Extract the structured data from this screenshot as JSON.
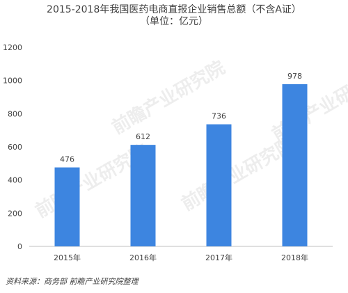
{
  "chart_data": {
    "type": "bar",
    "title": "2015-2018年我国医药电商直报企业销售总额（不含A证）",
    "subtitle": "（单位：亿元）",
    "categories": [
      "2015年",
      "2016年",
      "2017年",
      "2018年"
    ],
    "values": [
      476,
      612,
      736,
      978
    ],
    "ylim": [
      0,
      1200
    ],
    "yticks": [
      0,
      200,
      400,
      600,
      800,
      1000,
      1200
    ],
    "grid": false,
    "legend": "none",
    "bar_color": "#3d85e0"
  },
  "source": "资料来源：商务部 前瞻产业研究院整理",
  "watermark": "前瞻产业研究院"
}
